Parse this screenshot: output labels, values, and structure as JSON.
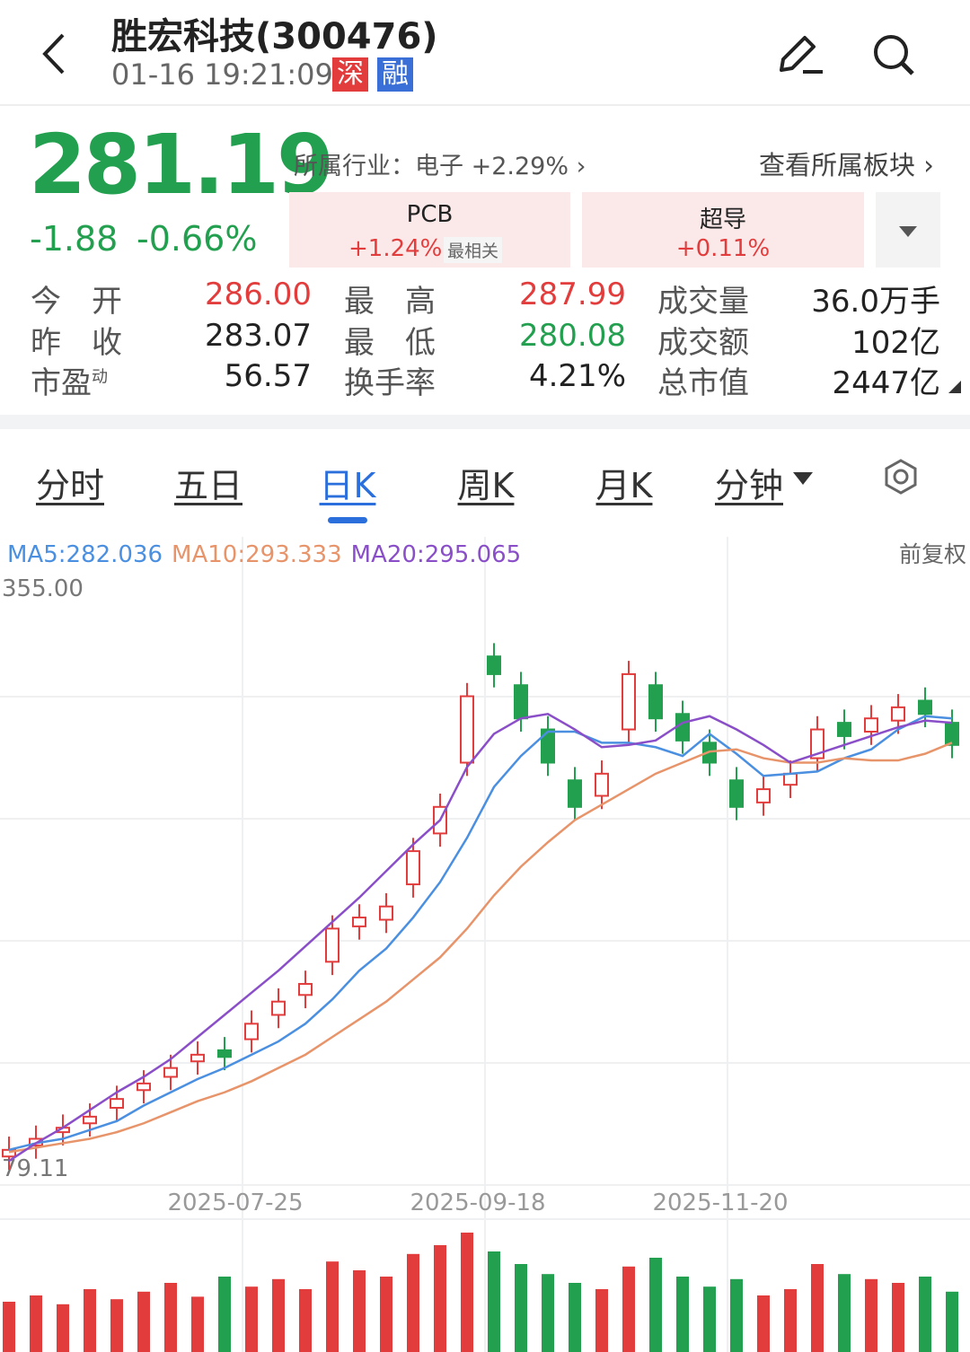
{
  "header": {
    "title": "胜宏科技(300476)",
    "time": "01-16 19:21:09",
    "badges": [
      "深",
      "融"
    ]
  },
  "quote": {
    "price": "281.19",
    "change": "-1.88",
    "change_pct": "-0.66%",
    "industry_label": "所属行业：",
    "industry": "电子 +2.29%",
    "sector_link": "查看所属板块"
  },
  "sectors": [
    {
      "name": "PCB",
      "change": "+1.24%",
      "tag": "最相关"
    },
    {
      "name": "超导",
      "change": "+0.11%"
    }
  ],
  "stats": {
    "rows": [
      [
        "今　开",
        {
          "text": "286.00",
          "color": "#e23c3c"
        },
        "最　高",
        {
          "text": "287.99",
          "color": "#e23c3c"
        },
        "成交量",
        "36.0万手"
      ],
      [
        "昨　收",
        "283.07",
        "最　低",
        {
          "text": "280.08",
          "color": "#23a04f"
        },
        "成交额",
        "102亿"
      ],
      [
        "市盈",
        "56.57",
        "换手率",
        "4.21%",
        "总市值",
        "2447亿"
      ]
    ],
    "pe_sup": "动"
  },
  "tabs": {
    "items": [
      "分时",
      "五日",
      "日K",
      "周K",
      "月K",
      "分钟"
    ],
    "active": 2
  },
  "chart_data": {
    "type": "candlestick",
    "adjust_label": "前复权",
    "ylim": [
      79.11,
      355
    ],
    "yticks": [
      {
        "value": 355,
        "label": "355.00"
      },
      79.11
    ],
    "categories": [
      null,
      null,
      null,
      null,
      null,
      null,
      null,
      null,
      "2025-07-25",
      null,
      null,
      null,
      null,
      null,
      null,
      null,
      null,
      "2025-09-18",
      null,
      null,
      null,
      null,
      null,
      null,
      null,
      null,
      "2025-11-20",
      null,
      null,
      null,
      null,
      null,
      null,
      null,
      null,
      null
    ],
    "open": [
      92,
      97,
      103,
      107,
      114,
      122,
      128,
      135,
      140,
      145,
      156,
      165,
      180,
      196,
      199,
      215,
      238,
      270,
      318,
      305,
      285,
      262,
      255,
      285,
      305,
      292,
      279,
      262,
      252,
      260,
      272,
      288,
      284,
      289,
      298,
      288
    ],
    "high": [
      101,
      106,
      111,
      116,
      124,
      131,
      138,
      144,
      146,
      158,
      168,
      176,
      201,
      206,
      211,
      236,
      256,
      306,
      324,
      311,
      291,
      268,
      271,
      316,
      311,
      298,
      285,
      268,
      264,
      271,
      291,
      294,
      296,
      301,
      304,
      294
    ],
    "low": [
      86,
      91,
      97,
      101,
      108,
      116,
      122,
      129,
      131,
      139,
      150,
      159,
      174,
      190,
      193,
      209,
      232,
      264,
      304,
      284,
      264,
      244,
      249,
      279,
      284,
      274,
      264,
      244,
      246,
      254,
      266,
      276,
      278,
      283,
      286,
      272
    ],
    "close": [
      95,
      100,
      105,
      110,
      118,
      125,
      132,
      138,
      137,
      152,
      162,
      170,
      195,
      200,
      205,
      230,
      250,
      300,
      310,
      290,
      270,
      250,
      265,
      310,
      290,
      280,
      270,
      250,
      258,
      265,
      285,
      282,
      290,
      295,
      292,
      278
    ],
    "up_color": "#e23c3c",
    "down_color": "#23a04f",
    "series": [
      {
        "name": "MA5:282.036",
        "color": "#4a8fe0",
        "values": [
          95,
          98,
          100,
          104,
          108,
          115,
          121,
          127,
          132,
          138,
          144,
          152,
          163,
          176,
          186,
          200,
          216,
          236,
          259,
          273,
          284,
          284,
          279,
          279,
          277,
          273,
          283,
          274,
          264,
          265,
          266,
          272,
          276,
          285,
          291,
          290
        ]
      },
      {
        "name": "MA10:293.333",
        "color": "#e8946a",
        "values": [
          94,
          96,
          98,
          100,
          103,
          107,
          112,
          117,
          121,
          126,
          132,
          138,
          146,
          154,
          162,
          172,
          182,
          195,
          210,
          223,
          234,
          244,
          251,
          258,
          265,
          270,
          275,
          276,
          272,
          270,
          270,
          272,
          271,
          271,
          274,
          279
        ]
      },
      {
        "name": "MA20:295.065",
        "color": "#8a4fc8",
        "values": [
          90,
          98,
          105,
          113,
          121,
          128,
          136,
          146,
          156,
          166,
          176,
          187,
          198,
          209,
          221,
          233,
          244,
          268,
          283,
          290,
          292,
          285,
          277,
          278,
          280,
          288,
          291,
          285,
          278,
          270,
          274,
          278,
          282,
          286,
          289,
          288
        ]
      }
    ],
    "volume": {
      "ylim": [
        0,
        100
      ],
      "values": [
        40,
        45,
        38,
        50,
        42,
        48,
        55,
        44,
        60,
        52,
        58,
        50,
        72,
        65,
        60,
        78,
        85,
        95,
        80,
        70,
        62,
        55,
        50,
        68,
        75,
        60,
        52,
        58,
        45,
        50,
        70,
        62,
        58,
        55,
        60,
        48
      ]
    }
  }
}
